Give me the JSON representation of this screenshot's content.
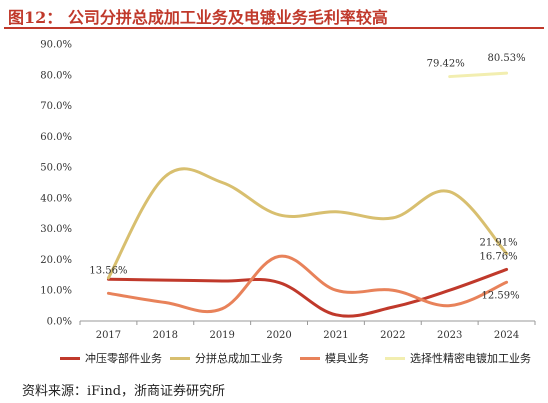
{
  "title": "图12：  公司分拼总成加工业务及电镀业务毛利率较高",
  "source": "资料来源：iFind，浙商证券研究所",
  "chart_data": {
    "type": "line",
    "title": "",
    "xlabel": "",
    "ylabel": "",
    "categories": [
      "2017",
      "2018",
      "2019",
      "2020",
      "2021",
      "2022",
      "2023",
      "2024"
    ],
    "ylim": [
      0,
      90
    ],
    "yticks": [
      "0.0%",
      "10.0%",
      "20.0%",
      "30.0%",
      "40.0%",
      "50.0%",
      "60.0%",
      "70.0%",
      "80.0%",
      "90.0%"
    ],
    "grid": false,
    "legend_position": "bottom",
    "series": [
      {
        "name": "冲压零部件业务",
        "color": "#c0392b",
        "values": [
          13.56,
          13.3,
          13.0,
          12.5,
          2.0,
          4.5,
          10.0,
          16.76
        ]
      },
      {
        "name": "分拼总成加工业务",
        "color": "#d8bf6f",
        "values": [
          14.0,
          47.0,
          45.0,
          34.5,
          35.5,
          33.5,
          42.0,
          21.91
        ]
      },
      {
        "name": "模具业务",
        "color": "#e8825a",
        "values": [
          9.0,
          6.0,
          4.0,
          21.0,
          10.0,
          10.0,
          5.0,
          12.59
        ]
      },
      {
        "name": "选择性精密电镀加工业务",
        "color": "#f2eeb0",
        "values": [
          null,
          null,
          null,
          null,
          null,
          null,
          79.42,
          80.53
        ]
      }
    ],
    "annotations": [
      {
        "text": "13.56%",
        "series": 0,
        "index": 0
      },
      {
        "text": "16.76%",
        "series": 0,
        "index": 7
      },
      {
        "text": "21.91%",
        "series": 1,
        "index": 7
      },
      {
        "text": "12.59%",
        "series": 2,
        "index": 7
      },
      {
        "text": "79.42%",
        "series": 3,
        "index": 6
      },
      {
        "text": "80.53%",
        "series": 3,
        "index": 7
      }
    ]
  }
}
